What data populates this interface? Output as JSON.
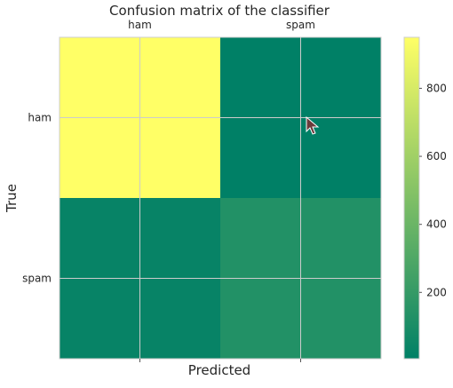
{
  "chart_data": {
    "type": "heatmap",
    "title": "Confusion matrix of the classifier",
    "xlabel": "Predicted",
    "ylabel": "True",
    "x_categories": [
      "ham",
      "spam"
    ],
    "y_categories": [
      "ham",
      "spam"
    ],
    "values": [
      [
        950,
        5
      ],
      [
        30,
        130
      ]
    ],
    "colormap": "summer",
    "colorbar": {
      "ticks": [
        200,
        400,
        600,
        800
      ],
      "range": [
        5,
        950
      ]
    },
    "grid": true
  },
  "colors": {
    "low": "#008066",
    "high": "#ffff66",
    "grid": "#cccccc",
    "frame": "#cccccc"
  }
}
